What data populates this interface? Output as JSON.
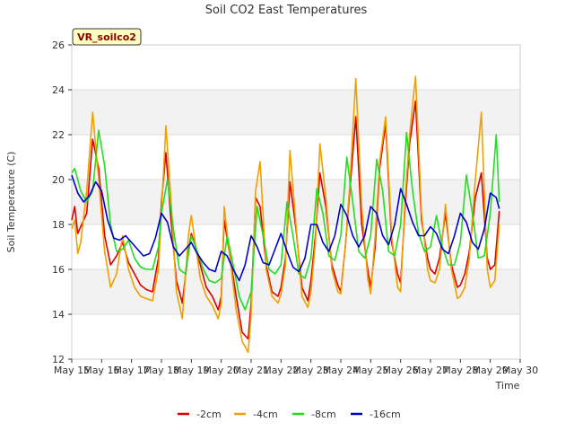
{
  "chart_data": {
    "type": "line",
    "title": "Soil CO2 East Temperatures",
    "xlabel": "Time",
    "ylabel": "Soil Temperature (C)",
    "site_label": "VR_soilco2",
    "ylim": [
      12,
      26
    ],
    "yticks": [
      12,
      14,
      16,
      18,
      20,
      22,
      24,
      26
    ],
    "xlim": [
      0,
      15
    ],
    "xticks": [
      {
        "value": 0,
        "label": "May 15"
      },
      {
        "value": 1,
        "label": "May 16"
      },
      {
        "value": 2,
        "label": "May 17"
      },
      {
        "value": 3,
        "label": "May 18"
      },
      {
        "value": 4,
        "label": "May 19"
      },
      {
        "value": 5,
        "label": "May 20"
      },
      {
        "value": 6,
        "label": "May 21"
      },
      {
        "value": 7,
        "label": "May 22"
      },
      {
        "value": 8,
        "label": "May 23"
      },
      {
        "value": 9,
        "label": "May 24"
      },
      {
        "value": 10,
        "label": "May 25"
      },
      {
        "value": 11,
        "label": "May 26"
      },
      {
        "value": 12,
        "label": "May 27"
      },
      {
        "value": 13,
        "label": "May 28"
      },
      {
        "value": 14,
        "label": "May 29"
      },
      {
        "value": 15,
        "label": "May 30"
      }
    ],
    "grid": true,
    "legend_position": "bottom",
    "x_units": "days since May 15",
    "series": [
      {
        "name": "-2cm",
        "color": "#dd0000",
        "x": [
          0.0,
          0.1,
          0.2,
          0.3,
          0.5,
          0.7,
          0.9,
          1.1,
          1.3,
          1.5,
          1.7,
          1.9,
          2.1,
          2.3,
          2.5,
          2.7,
          2.9,
          3.0,
          3.15,
          3.3,
          3.5,
          3.7,
          3.9,
          4.0,
          4.15,
          4.3,
          4.5,
          4.7,
          4.9,
          5.0,
          5.1,
          5.3,
          5.5,
          5.7,
          5.9,
          6.0,
          6.15,
          6.3,
          6.5,
          6.7,
          6.9,
          7.0,
          7.15,
          7.3,
          7.5,
          7.7,
          7.9,
          8.0,
          8.15,
          8.3,
          8.5,
          8.7,
          8.9,
          9.0,
          9.15,
          9.3,
          9.5,
          9.7,
          9.9,
          10.0,
          10.15,
          10.3,
          10.5,
          10.7,
          10.9,
          11.0,
          11.15,
          11.3,
          11.5,
          11.7,
          11.9,
          12.0,
          12.15,
          12.3,
          12.5,
          12.7,
          12.9,
          13.0,
          13.15,
          13.3,
          13.5,
          13.7,
          13.9,
          14.0,
          14.15,
          14.3
        ],
        "values": [
          18.2,
          18.8,
          17.6,
          17.9,
          18.5,
          21.8,
          20.5,
          17.5,
          16.2,
          16.6,
          17.2,
          16.3,
          15.8,
          15.3,
          15.1,
          15.0,
          16.5,
          19.0,
          21.2,
          18.5,
          15.5,
          14.5,
          16.8,
          17.6,
          17.0,
          16.2,
          15.2,
          14.8,
          14.2,
          14.8,
          18.2,
          16.5,
          14.8,
          13.2,
          12.9,
          14.5,
          19.2,
          18.8,
          16.2,
          15.0,
          14.8,
          15.2,
          16.5,
          19.9,
          17.8,
          15.2,
          14.6,
          15.5,
          17.5,
          20.3,
          18.8,
          16.2,
          15.3,
          15.0,
          17.0,
          19.5,
          22.8,
          18.0,
          16.0,
          15.2,
          17.0,
          20.5,
          22.5,
          17.2,
          15.8,
          15.4,
          18.8,
          21.6,
          23.5,
          18.2,
          16.5,
          16.0,
          15.8,
          16.5,
          18.5,
          16.2,
          15.2,
          15.3,
          15.8,
          16.8,
          19.2,
          20.3,
          16.5,
          16.0,
          16.2,
          18.6
        ]
      },
      {
        "name": "-4cm",
        "color": "#f0a000",
        "x": [
          0.0,
          0.1,
          0.2,
          0.3,
          0.5,
          0.7,
          0.9,
          1.1,
          1.3,
          1.5,
          1.7,
          1.9,
          2.1,
          2.3,
          2.5,
          2.7,
          2.9,
          3.0,
          3.15,
          3.3,
          3.5,
          3.7,
          3.9,
          4.0,
          4.15,
          4.3,
          4.5,
          4.7,
          4.9,
          5.0,
          5.1,
          5.3,
          5.5,
          5.7,
          5.9,
          6.0,
          6.15,
          6.3,
          6.5,
          6.7,
          6.9,
          7.0,
          7.15,
          7.3,
          7.5,
          7.7,
          7.9,
          8.0,
          8.15,
          8.3,
          8.5,
          8.7,
          8.9,
          9.0,
          9.15,
          9.3,
          9.5,
          9.7,
          9.9,
          10.0,
          10.15,
          10.3,
          10.5,
          10.7,
          10.9,
          11.0,
          11.15,
          11.3,
          11.5,
          11.7,
          11.9,
          12.0,
          12.15,
          12.3,
          12.5,
          12.7,
          12.9,
          13.0,
          13.15,
          13.3,
          13.5,
          13.7,
          13.9,
          14.0,
          14.15,
          14.3
        ],
        "values": [
          17.8,
          18.2,
          16.7,
          17.2,
          19.5,
          23.0,
          20.0,
          16.8,
          15.2,
          15.8,
          17.5,
          16.0,
          15.2,
          14.8,
          14.7,
          14.6,
          16.0,
          18.6,
          22.4,
          19.5,
          15.0,
          13.8,
          17.5,
          18.4,
          17.0,
          15.6,
          14.8,
          14.4,
          13.8,
          14.5,
          18.8,
          16.4,
          14.2,
          12.8,
          12.3,
          14.0,
          19.5,
          20.8,
          16.0,
          14.8,
          14.5,
          14.9,
          16.2,
          21.3,
          18.0,
          14.8,
          14.3,
          15.0,
          17.2,
          21.6,
          19.2,
          16.0,
          15.0,
          14.9,
          17.0,
          19.8,
          24.5,
          18.8,
          15.6,
          14.9,
          17.5,
          20.8,
          22.8,
          17.5,
          15.2,
          15.0,
          19.2,
          22.0,
          24.6,
          18.5,
          16.0,
          15.5,
          15.4,
          16.0,
          18.9,
          16.0,
          14.7,
          14.8,
          15.2,
          16.5,
          20.0,
          23.0,
          16.0,
          15.2,
          15.5,
          18.0
        ]
      },
      {
        "name": "-8cm",
        "color": "#22dd22",
        "x": [
          0.0,
          0.1,
          0.3,
          0.5,
          0.7,
          0.9,
          1.1,
          1.3,
          1.5,
          1.7,
          1.9,
          2.1,
          2.3,
          2.5,
          2.7,
          2.9,
          3.0,
          3.2,
          3.4,
          3.6,
          3.8,
          4.0,
          4.2,
          4.4,
          4.6,
          4.8,
          5.0,
          5.2,
          5.4,
          5.6,
          5.8,
          6.0,
          6.2,
          6.4,
          6.6,
          6.8,
          7.0,
          7.2,
          7.4,
          7.6,
          7.8,
          8.0,
          8.2,
          8.4,
          8.6,
          8.8,
          9.0,
          9.2,
          9.4,
          9.6,
          9.8,
          10.0,
          10.2,
          10.4,
          10.6,
          10.8,
          11.0,
          11.2,
          11.4,
          11.6,
          11.8,
          12.0,
          12.2,
          12.4,
          12.6,
          12.8,
          13.0,
          13.2,
          13.4,
          13.6,
          13.8,
          14.0,
          14.2,
          14.3
        ],
        "values": [
          20.3,
          20.5,
          19.5,
          19.0,
          19.5,
          22.2,
          20.6,
          18.0,
          16.8,
          16.9,
          17.3,
          16.5,
          16.1,
          16.0,
          16.0,
          17.0,
          18.5,
          20.0,
          17.8,
          16.0,
          15.8,
          17.5,
          16.8,
          16.0,
          15.5,
          15.4,
          15.6,
          17.5,
          16.2,
          14.8,
          14.2,
          15.0,
          18.8,
          17.5,
          16.0,
          15.8,
          16.2,
          19.0,
          17.5,
          15.8,
          15.6,
          16.5,
          19.6,
          18.5,
          16.6,
          16.4,
          17.5,
          21.0,
          19.0,
          16.8,
          16.5,
          17.5,
          20.9,
          19.5,
          16.8,
          16.6,
          18.0,
          22.1,
          19.5,
          17.6,
          16.8,
          17.0,
          18.4,
          17.0,
          16.2,
          16.2,
          17.2,
          20.2,
          18.5,
          16.5,
          16.6,
          18.5,
          22.0,
          19.0
        ]
      },
      {
        "name": "-16cm",
        "color": "#0000cc",
        "x": [
          0.0,
          0.2,
          0.4,
          0.6,
          0.8,
          1.0,
          1.2,
          1.4,
          1.6,
          1.8,
          2.0,
          2.2,
          2.4,
          2.6,
          2.8,
          3.0,
          3.2,
          3.4,
          3.6,
          3.8,
          4.0,
          4.2,
          4.4,
          4.6,
          4.8,
          5.0,
          5.2,
          5.4,
          5.6,
          5.8,
          6.0,
          6.2,
          6.4,
          6.6,
          6.8,
          7.0,
          7.2,
          7.4,
          7.6,
          7.8,
          8.0,
          8.2,
          8.4,
          8.6,
          8.8,
          9.0,
          9.2,
          9.4,
          9.6,
          9.8,
          10.0,
          10.2,
          10.4,
          10.6,
          10.8,
          11.0,
          11.2,
          11.4,
          11.6,
          11.8,
          12.0,
          12.2,
          12.4,
          12.6,
          12.8,
          13.0,
          13.2,
          13.4,
          13.6,
          13.8,
          14.0,
          14.2,
          14.3
        ],
        "values": [
          20.2,
          19.4,
          19.0,
          19.3,
          19.9,
          19.5,
          18.2,
          17.4,
          17.3,
          17.5,
          17.2,
          16.9,
          16.6,
          16.7,
          17.4,
          18.5,
          18.1,
          17.0,
          16.6,
          16.9,
          17.2,
          16.7,
          16.3,
          16.0,
          15.9,
          16.8,
          16.6,
          16.0,
          15.5,
          16.2,
          17.5,
          17.0,
          16.3,
          16.2,
          16.9,
          17.6,
          16.8,
          16.1,
          15.9,
          16.5,
          18.0,
          18.0,
          17.2,
          16.8,
          17.5,
          18.9,
          18.4,
          17.5,
          17.0,
          17.5,
          18.8,
          18.5,
          17.5,
          17.1,
          18.0,
          19.6,
          18.9,
          18.1,
          17.5,
          17.5,
          17.9,
          17.6,
          16.9,
          16.7,
          17.5,
          18.5,
          18.1,
          17.2,
          16.9,
          17.8,
          19.4,
          19.2,
          18.7
        ]
      }
    ]
  }
}
